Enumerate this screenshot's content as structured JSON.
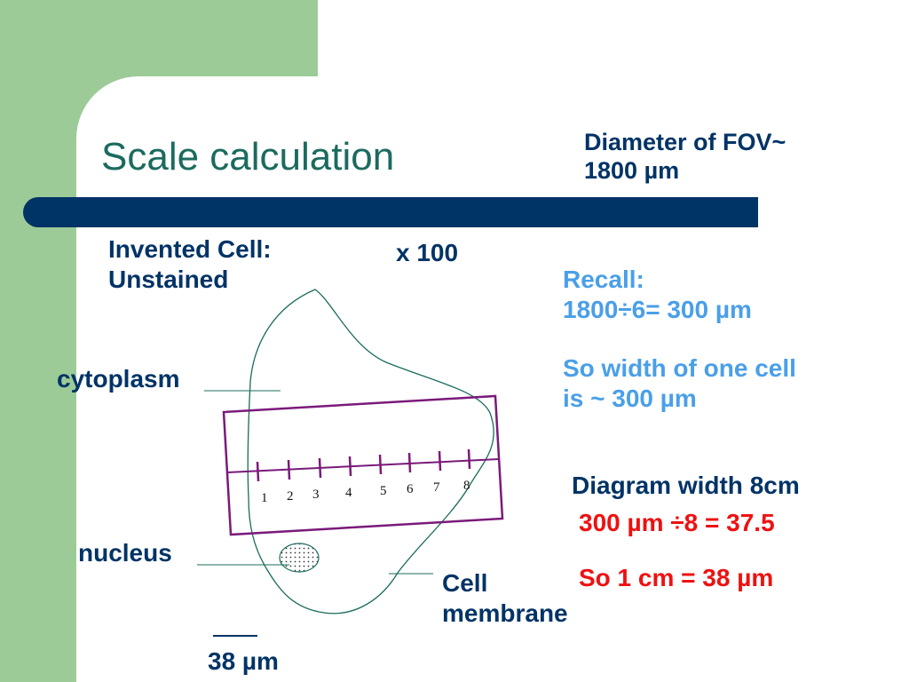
{
  "slide": {
    "title": "Scale calculation",
    "fov": {
      "line1": "Diameter of FOV~",
      "line2": "1800 µm"
    },
    "cell_heading": {
      "line1": "Invented Cell:",
      "line2": "Unstained"
    },
    "magnification": "x 100",
    "recall": {
      "line1": "Recall:",
      "line2": "1800÷6= 300 µm"
    },
    "cell_width": {
      "line1": "So width of one cell",
      "line2": "is  ~ 300 µm"
    },
    "diagram_width": "Diagram width 8cm",
    "division": "300 µm ÷8 = 37.5",
    "result": "So 1 cm = 38 µm"
  },
  "diagram": {
    "labels": {
      "cytoplasm": "cytoplasm",
      "nucleus": "nucleus",
      "membrane_line1": "Cell",
      "membrane_line2": "membrane"
    },
    "ruler_numbers": [
      "1",
      "2",
      "3",
      "4",
      "5",
      "6",
      "7",
      "8"
    ],
    "scale_bar_label": "38 µm"
  },
  "colors": {
    "background_green": "#9ccb98",
    "title_bar": "#003366",
    "title_text": "#1b6b5e",
    "recall_text": "#4a9fe8",
    "result_text": "#ee1111",
    "ruler_purple": "#7a1a7a"
  }
}
